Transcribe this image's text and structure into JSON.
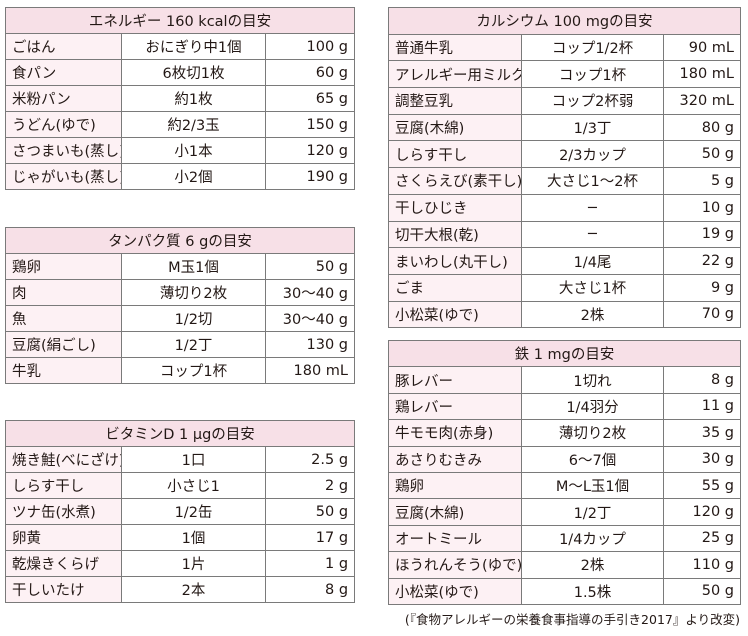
{
  "tables": {
    "energy": {
      "title": "エネルギー 160 kcalの目安",
      "rows": [
        {
          "name": "ごはん",
          "portion": "おにぎり中1個",
          "amount": "100 g"
        },
        {
          "name": "食パン",
          "portion": "6枚切1枚",
          "amount": "60 g"
        },
        {
          "name": "米粉パン",
          "portion": "約1枚",
          "amount": "65 g"
        },
        {
          "name": "うどん(ゆで)",
          "portion": "約2/3玉",
          "amount": "150 g"
        },
        {
          "name": "さつまいも(蒸し)",
          "portion": "小1本",
          "amount": "120 g"
        },
        {
          "name": "じゃがいも(蒸し)",
          "portion": "小2個",
          "amount": "190 g"
        }
      ]
    },
    "protein": {
      "title": "タンパク質 6 gの目安",
      "rows": [
        {
          "name": "鶏卵",
          "portion": "M玉1個",
          "amount": "50 g"
        },
        {
          "name": "肉",
          "portion": "薄切り2枚",
          "amount": "30〜40 g"
        },
        {
          "name": "魚",
          "portion": "1/2切",
          "amount": "30〜40 g"
        },
        {
          "name": "豆腐(絹ごし)",
          "portion": "1/2丁",
          "amount": "130 g"
        },
        {
          "name": "牛乳",
          "portion": "コップ1杯",
          "amount": "180 mL"
        }
      ]
    },
    "vitamin_d": {
      "title": "ビタミンD 1 μgの目安",
      "rows": [
        {
          "name": "焼き鮭(べにざけ)",
          "portion": "1口",
          "amount": "2.5 g"
        },
        {
          "name": "しらす干し",
          "portion": "小さじ1",
          "amount": "2 g"
        },
        {
          "name": "ツナ缶(水煮)",
          "portion": "1/2缶",
          "amount": "50 g"
        },
        {
          "name": "卵黄",
          "portion": "1個",
          "amount": "17 g"
        },
        {
          "name": "乾燥きくらげ",
          "portion": "1片",
          "amount": "1 g"
        },
        {
          "name": "干しいたけ",
          "portion": "2本",
          "amount": "8 g"
        }
      ]
    },
    "calcium": {
      "title": "カルシウム 100 mgの目安",
      "rows": [
        {
          "name": "普通牛乳",
          "portion": "コップ1/2杯",
          "amount": "90 mL"
        },
        {
          "name": "アレルギー用ミルク",
          "portion": "コップ1杯",
          "amount": "180 mL"
        },
        {
          "name": "調整豆乳",
          "portion": "コップ2杯弱",
          "amount": "320 mL"
        },
        {
          "name": "豆腐(木綿)",
          "portion": "1/3丁",
          "amount": "80 g"
        },
        {
          "name": "しらす干し",
          "portion": "2/3カップ",
          "amount": "50 g"
        },
        {
          "name": "さくらえび(素干し)",
          "portion": "大さじ1〜2杯",
          "amount": "5 g"
        },
        {
          "name": "干しひじき",
          "portion": "−",
          "amount": "10 g"
        },
        {
          "name": "切干大根(乾)",
          "portion": "−",
          "amount": "19 g"
        },
        {
          "name": "まいわし(丸干し)",
          "portion": "1/4尾",
          "amount": "22 g"
        },
        {
          "name": "ごま",
          "portion": "大さじ1杯",
          "amount": "9 g"
        },
        {
          "name": "小松菜(ゆで)",
          "portion": "2株",
          "amount": "70 g"
        }
      ]
    },
    "iron": {
      "title": "鉄 1 mgの目安",
      "rows": [
        {
          "name": "豚レバー",
          "portion": "1切れ",
          "amount": "8 g"
        },
        {
          "name": "鶏レバー",
          "portion": "1/4羽分",
          "amount": "11 g"
        },
        {
          "name": "牛モモ肉(赤身)",
          "portion": "薄切り2枚",
          "amount": "35 g"
        },
        {
          "name": "あさりむきみ",
          "portion": "6〜7個",
          "amount": "30 g"
        },
        {
          "name": "鶏卵",
          "portion": "M〜L玉1個",
          "amount": "55 g"
        },
        {
          "name": "豆腐(木綿)",
          "portion": "1/2丁",
          "amount": "120 g"
        },
        {
          "name": "オートミール",
          "portion": "1/4カップ",
          "amount": "25 g"
        },
        {
          "name": "ほうれんそう(ゆで)",
          "portion": "2株",
          "amount": "110 g"
        },
        {
          "name": "小松菜(ゆで)",
          "portion": "1.5株",
          "amount": "50 g"
        }
      ]
    }
  },
  "source": "(『食物アレルギーの栄養食事指導の手引き2017』より改変)",
  "colors": {
    "header_background": "#f7e0e7",
    "name_column_background": "#fdf1f4",
    "border": "#7a7a7a"
  }
}
